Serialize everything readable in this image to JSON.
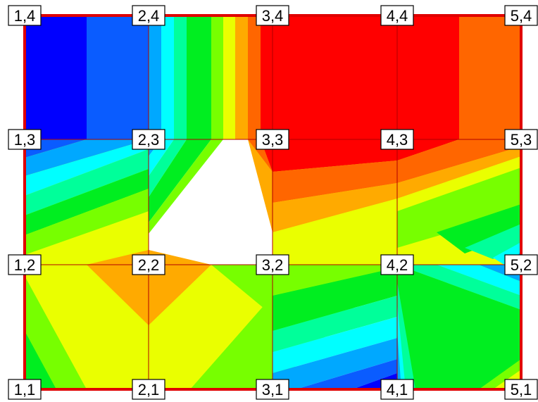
{
  "nodes": [
    {
      "label": "1,4"
    },
    {
      "label": "2,4"
    },
    {
      "label": "3,4"
    },
    {
      "label": "4,4"
    },
    {
      "label": "5,4"
    },
    {
      "label": "1,3"
    },
    {
      "label": "2,3"
    },
    {
      "label": "3,3"
    },
    {
      "label": "4,3"
    },
    {
      "label": "5,3"
    },
    {
      "label": "1,2"
    },
    {
      "label": "2,2"
    },
    {
      "label": "3,2"
    },
    {
      "label": "4,2"
    },
    {
      "label": "5,2"
    },
    {
      "label": "1,1"
    },
    {
      "label": "2,1"
    },
    {
      "label": "3,1"
    },
    {
      "label": "4,1"
    },
    {
      "label": "5,1"
    }
  ],
  "colors": {
    "border": "#e00000",
    "grid": "#b00000",
    "deep_blue": "#0000ff",
    "blue": "#0a5cff",
    "sky": "#00a8ff",
    "cyan": "#00ffff",
    "teal": "#00ff9a",
    "green": "#00ee20",
    "lime": "#77ff00",
    "yellow": "#eaff00",
    "orange": "#ffaa00",
    "dark_orange": "#ff6600",
    "red": "#ff0000"
  }
}
